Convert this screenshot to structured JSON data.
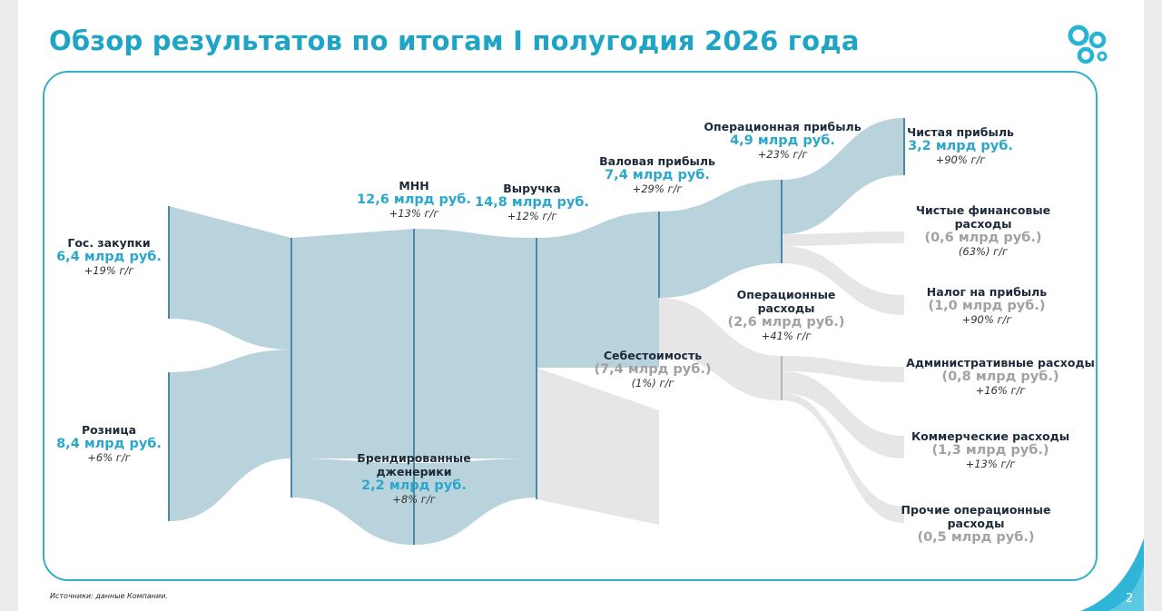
{
  "title": "Обзор результатов по итогам I полугодия 2026 года",
  "source": "Источники: данные Компании.",
  "page_number": "2",
  "colors": {
    "accent": "#1ea5c6",
    "flow_blue": "#b7d2dc",
    "flow_grey": "#e6e6e6",
    "node_bar": "#4f87a6"
  },
  "nodes": {
    "gos": {
      "name": "Гос. закупки",
      "value": "6,4 млрд руб.",
      "growth": "+19% г/г"
    },
    "roz": {
      "name": "Розница",
      "value": "8,4 млрд руб.",
      "growth": "+6% г/г"
    },
    "mnn": {
      "name": "МНН",
      "value": "12,6 млрд руб.",
      "growth": "+13% г/г"
    },
    "brand": {
      "name_line1": "Брендированные",
      "name_line2": "дженерики",
      "value": "2,2 млрд руб.",
      "growth": "+8% г/г"
    },
    "rev": {
      "name": "Выручка",
      "value": "14,8 млрд руб.",
      "growth": "+12% г/г"
    },
    "cogs": {
      "name": "Себестоимость",
      "value": "(7,4 млрд руб.)",
      "growth": "(1%) г/г"
    },
    "gross": {
      "name": "Валовая прибыль",
      "value": "7,4 млрд руб.",
      "growth": "+29% г/г"
    },
    "op": {
      "name": "Операционная прибыль",
      "value": "4,9 млрд руб.",
      "growth": "+23% г/г"
    },
    "opex": {
      "name_line1": "Операционные",
      "name_line2": "расходы",
      "value": "(2,6 млрд руб.)",
      "growth": "+41% г/г"
    },
    "net": {
      "name": "Чистая прибыль",
      "value": "3,2 млрд руб.",
      "growth": "+90% г/г"
    },
    "fin": {
      "name_line1": "Чистые финансовые",
      "name_line2": "расходы",
      "value": "(0,6 млрд руб.)",
      "growth": "(63%) г/г"
    },
    "tax": {
      "name": "Налог на прибыль",
      "value": "(1,0 млрд руб.)",
      "growth": "+90% г/г"
    },
    "adm": {
      "name": "Административные расходы",
      "value": "(0,8 млрд руб.)",
      "growth": "+16% г/г"
    },
    "com": {
      "name": "Коммерческие расходы",
      "value": "(1,3 млрд руб.)",
      "growth": "+13% г/г"
    },
    "oth": {
      "name_line1": "Прочие операционные",
      "name_line2": "расходы",
      "value": "(0,5 млрд руб.)"
    }
  }
}
